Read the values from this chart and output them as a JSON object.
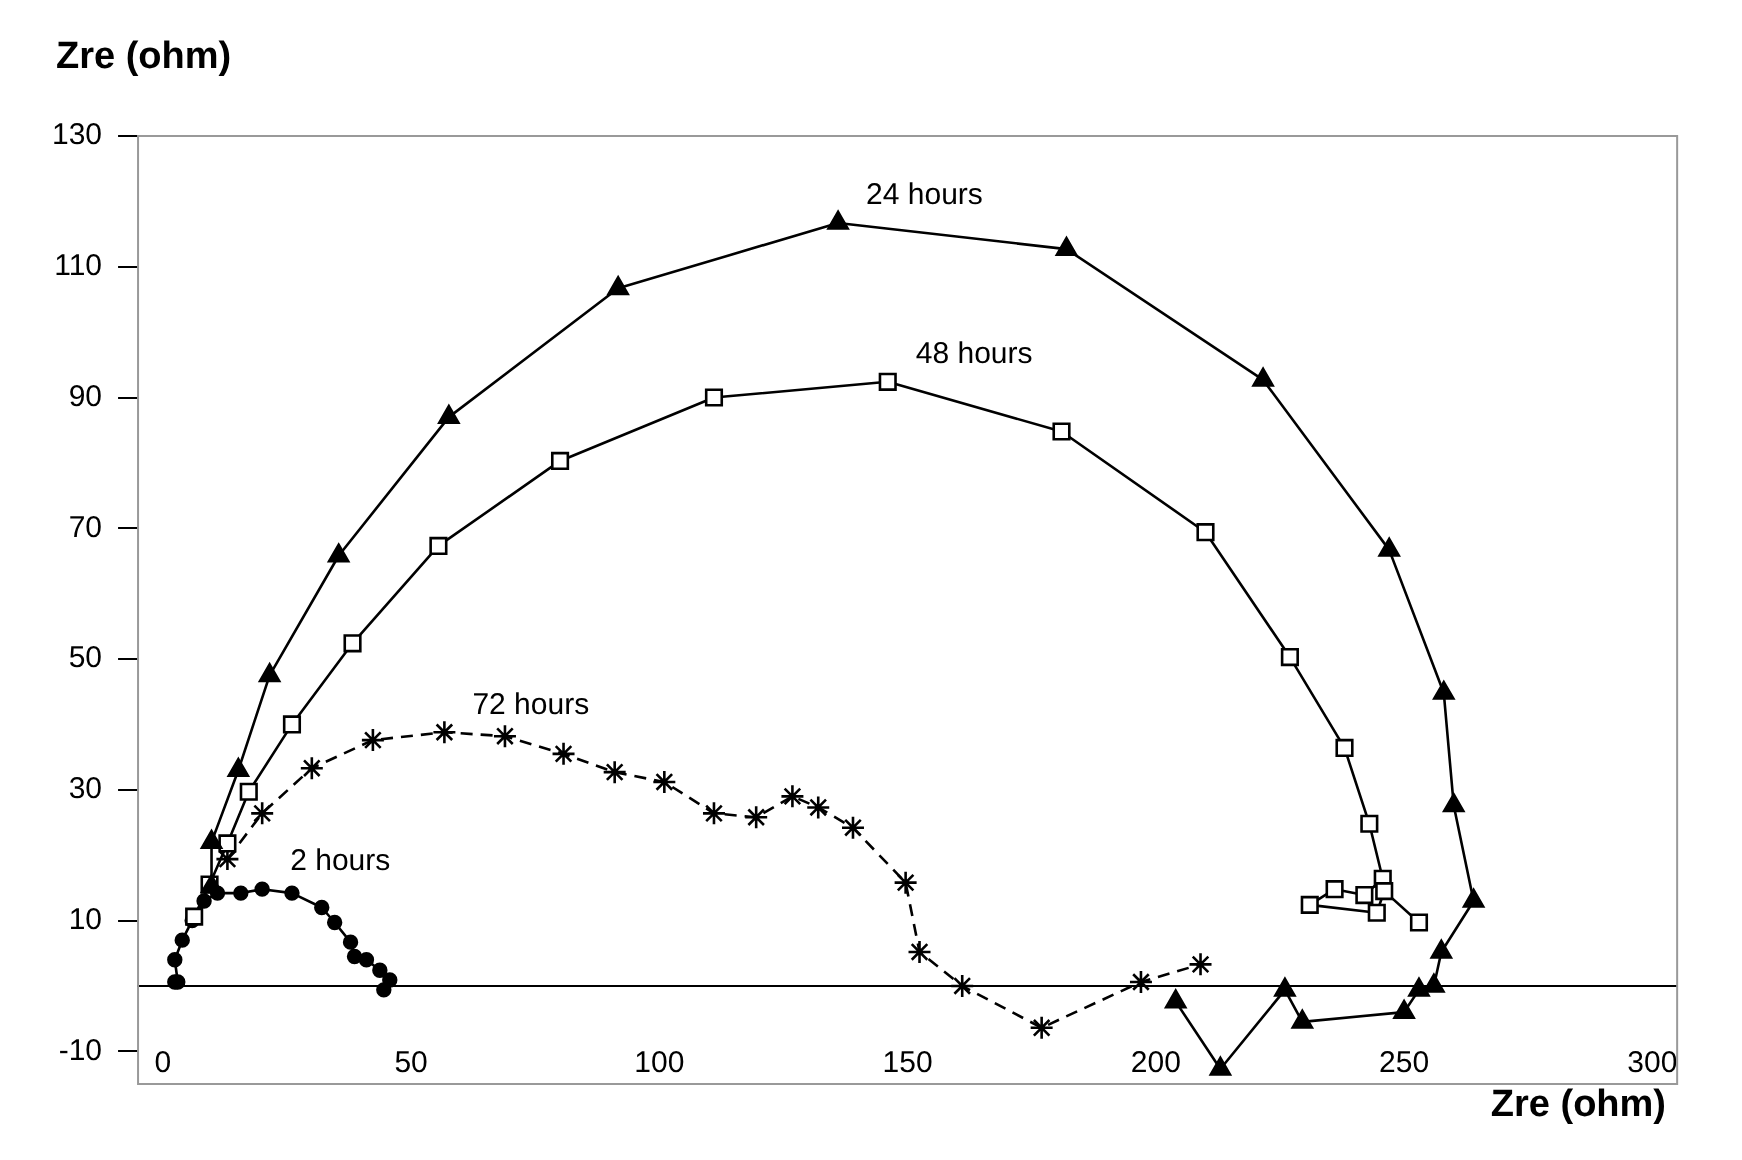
{
  "chart_data": {
    "type": "line",
    "xlabel": "Zre (ohm)",
    "ylabel": "Zre (ohm)",
    "xlim": [
      -5,
      305
    ],
    "ylim": [
      -15,
      130
    ],
    "xticks": [
      0,
      50,
      100,
      150,
      200,
      250,
      300
    ],
    "yticks": [
      -10,
      10,
      30,
      50,
      70,
      90,
      110,
      130
    ],
    "grid": false,
    "legend": false,
    "series": [
      {
        "name": "24 hours",
        "color": "#000000",
        "marker": "triangle",
        "line_style": "solid",
        "x": [
          9.8,
          9.8,
          15.2,
          21.5,
          35.4,
          57.6,
          91.7,
          136,
          182,
          221.6,
          247,
          258,
          260,
          264,
          257.5,
          256,
          253,
          250,
          229.5,
          226,
          213,
          204
        ],
        "values": [
          15.2,
          22,
          33,
          47.5,
          65.8,
          87,
          106.7,
          116.7,
          112.7,
          92.7,
          66.7,
          44.8,
          27.6,
          13,
          5.2,
          0,
          -0.6,
          -4,
          -5.5,
          -0.6,
          -12.7,
          -2.4
        ]
      },
      {
        "name": "48 hours",
        "color": "#000000",
        "marker": "square",
        "line_style": "solid",
        "x": [
          6.3,
          9.4,
          13,
          17.3,
          26,
          38.2,
          55.5,
          80,
          111,
          146,
          181,
          210,
          227,
          238,
          243,
          245.7,
          242,
          236,
          231,
          244.5,
          246,
          253
        ],
        "values": [
          10.6,
          15.5,
          21.8,
          29.7,
          40,
          52.4,
          67.3,
          80.3,
          90,
          92.4,
          84.8,
          69.4,
          50.3,
          36.4,
          24.8,
          16.4,
          13.9,
          14.8,
          12.4,
          11.2,
          14.5,
          9.7
        ]
      },
      {
        "name": "72 hours",
        "color": "#000000",
        "marker": "cross",
        "line_style": "dashed",
        "x": [
          13,
          20,
          30,
          42.3,
          56.7,
          68.9,
          80.7,
          91,
          101,
          111,
          119.5,
          126.8,
          132,
          139,
          149.6,
          152.4,
          161,
          177,
          197,
          209
        ],
        "values": [
          19.4,
          26.4,
          33.3,
          37.6,
          38.8,
          38.2,
          35.5,
          32.7,
          31.2,
          26.4,
          25.8,
          29,
          27.3,
          24.2,
          15.8,
          5.2,
          0,
          -6.4,
          0.6,
          3.3
        ]
      },
      {
        "name": "2 hours",
        "color": "#000000",
        "marker": "circle",
        "line_style": "solid",
        "x": [
          2.4,
          3,
          2.4,
          3.9,
          5.9,
          8.3,
          11,
          15.7,
          20,
          26,
          32,
          34.6,
          37.8,
          38.6,
          41,
          43.7,
          45.7,
          44.5
        ],
        "values": [
          0.6,
          0.6,
          4,
          7,
          10,
          13,
          14.2,
          14.2,
          14.8,
          14.2,
          12,
          9.7,
          6.7,
          4.5,
          4,
          2.4,
          0.9,
          -0.6
        ]
      }
    ]
  }
}
